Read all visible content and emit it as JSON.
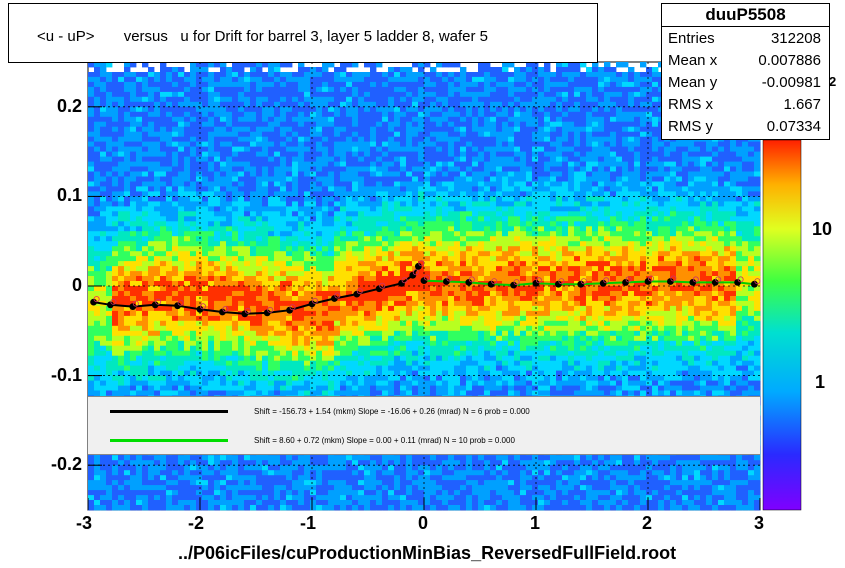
{
  "title": "<u - uP>       versus   u for Drift for barrel 3, layer 5 ladder 8, wafer 5",
  "stats": {
    "name": "duuP5508",
    "rows": [
      {
        "label": "Entries",
        "value": "312208"
      },
      {
        "label": "Mean x",
        "value": "0.007886"
      },
      {
        "label": "Mean y",
        "value": "-0.00981"
      },
      {
        "label": "RMS x",
        "value": "1.667"
      },
      {
        "label": "RMS y",
        "value": "0.07334"
      }
    ]
  },
  "x_axis_title": "../P06icFiles/cuProductionMinBias_ReversedFullField.root",
  "legend": [
    {
      "text": "Shift =   -156.73 + 1.54 (mkm) Slope =   -16.06 + 0.26 (mrad)  N = 6 prob = 0.000",
      "color": "#000000"
    },
    {
      "text": "Shift =     8.60 + 0.72 (mkm) Slope =     0.00 + 0.11 (mrad)  N = 10 prob = 0.000",
      "color": "#00dd00"
    }
  ],
  "colors": {
    "palette_low": "#7f00ff",
    "palette_high": "#ff0000",
    "profile_black": "#000000",
    "profile_green": "#00cc00",
    "open_markers": "#cc3366"
  },
  "chart_data": {
    "type": "heatmap",
    "title": "<u - uP>       versus   u for Drift for barrel 3, layer 5 ladder 8, wafer 5",
    "xlabel": "../P06icFiles/cuProductionMinBias_ReversedFullField.root",
    "ylabel": "",
    "xlim": [
      -3,
      3
    ],
    "ylim": [
      -0.25,
      0.25
    ],
    "x_ticks": [
      -3,
      -2,
      -1,
      0,
      1,
      2,
      3
    ],
    "y_ticks": [
      -0.2,
      -0.1,
      0,
      0.1,
      0.2
    ],
    "z_scale": "log",
    "z_ticks": [
      "1",
      "10"
    ],
    "z_exponent_label": "2",
    "grid": true,
    "series": [
      {
        "type": "profile",
        "x": [
          -2.95,
          -2.8,
          -2.6,
          -2.4,
          -2.2,
          -2.0,
          -1.8,
          -1.6,
          -1.4,
          -1.2,
          -1.0,
          -0.8,
          -0.6,
          -0.4,
          -0.2,
          -0.1,
          -0.05
        ],
        "y": [
          -0.018,
          -0.021,
          -0.023,
          -0.021,
          -0.022,
          -0.026,
          -0.029,
          -0.031,
          -0.03,
          -0.027,
          -0.02,
          -0.014,
          -0.009,
          -0.003,
          0.003,
          0.012,
          0.022
        ]
      },
      {
        "type": "profile",
        "x": [
          0.0,
          0.2,
          0.4,
          0.6,
          0.8,
          1.0,
          1.2,
          1.4,
          1.6,
          1.8,
          2.0,
          2.2,
          2.4,
          2.6,
          2.8,
          2.95
        ],
        "y": [
          0.006,
          0.005,
          0.004,
          0.002,
          0.001,
          0.003,
          0.002,
          0.002,
          0.003,
          0.004,
          0.005,
          0.005,
          0.004,
          0.004,
          0.004,
          0.002
        ]
      }
    ]
  }
}
